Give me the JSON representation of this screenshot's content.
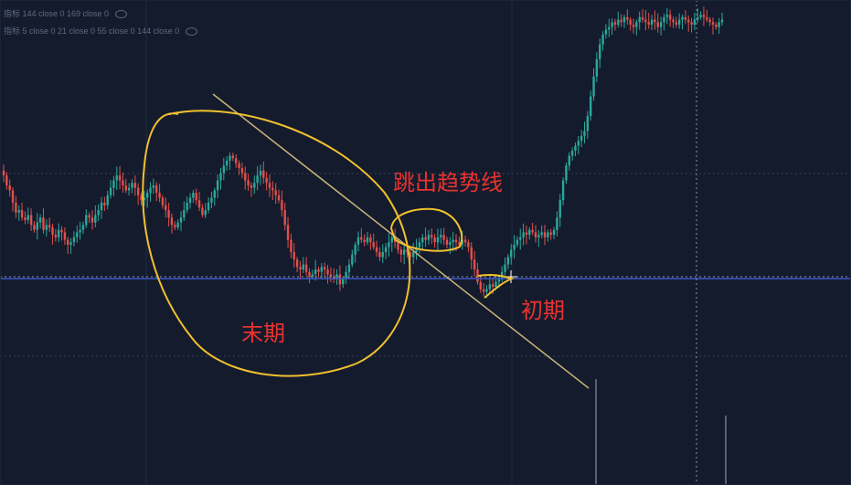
{
  "legend": {
    "line1": "指标 144 close 0 169 close 0",
    "line2": "指标 5 close 0 21 close 0 55 close 0 144 close 0",
    "eye_icon": "eye-icon"
  },
  "annotations": {
    "breakout": "跳出趋势线",
    "late": "末期",
    "early": "初期"
  },
  "colors": {
    "background": "#141b2d",
    "up": "#2aa89a",
    "down": "#e2504a",
    "highlight": "#f2c12e",
    "trendline": "#c9b57a",
    "horizontal_line": "#3e56c8",
    "text": "#e8332f"
  },
  "chart_data": {
    "type": "candlestick",
    "closes": [
      72,
      68,
      66,
      61,
      57,
      58,
      55,
      54,
      56,
      52,
      50,
      53,
      55,
      50,
      52,
      51,
      48,
      47,
      50,
      49,
      46,
      44,
      45,
      47,
      49,
      50,
      52,
      56,
      55,
      53,
      56,
      58,
      61,
      60,
      64,
      67,
      70,
      72,
      70,
      68,
      66,
      67,
      69,
      67,
      64,
      62,
      63,
      65,
      67,
      68,
      65,
      63,
      60,
      58,
      55,
      52,
      51,
      53,
      55,
      58,
      61,
      63,
      65,
      62,
      59,
      56,
      58,
      61,
      63,
      66,
      70,
      73,
      76,
      78,
      80,
      79,
      77,
      75,
      73,
      70,
      68,
      67,
      69,
      72,
      74,
      71,
      69,
      67,
      66,
      64,
      62,
      58,
      52,
      46,
      41,
      38,
      35,
      34,
      36,
      33,
      31,
      32,
      34,
      33,
      35,
      34,
      32,
      31,
      30,
      32,
      28,
      30,
      33,
      36,
      40,
      44,
      47,
      46,
      45,
      47,
      45,
      43,
      41,
      39,
      41,
      43,
      45,
      47,
      45,
      42,
      40,
      42,
      41,
      39,
      41,
      43,
      45,
      47,
      46,
      48,
      47,
      45,
      47,
      48,
      46,
      44,
      45,
      46,
      45,
      44,
      46,
      45,
      43,
      38,
      34,
      29,
      26,
      25,
      26,
      28,
      27,
      29,
      30,
      33,
      36,
      39,
      42,
      44,
      46,
      47,
      49,
      48,
      50,
      49,
      47,
      48,
      49,
      47,
      49,
      48,
      50,
      55,
      62,
      70,
      76,
      80,
      82,
      84,
      86,
      88,
      90,
      96,
      104,
      112,
      119,
      125,
      129,
      131,
      132,
      134,
      133,
      135,
      134,
      136,
      135,
      133,
      132,
      134,
      136,
      135,
      134,
      133,
      135,
      134,
      132,
      134,
      136,
      137,
      135,
      134,
      133,
      135,
      136,
      135,
      134,
      133,
      135,
      136,
      137,
      136,
      135,
      134,
      133,
      132,
      134,
      135
    ],
    "trendline": "descending",
    "horizontal_level": true,
    "grid": true,
    "crosshair": true
  }
}
